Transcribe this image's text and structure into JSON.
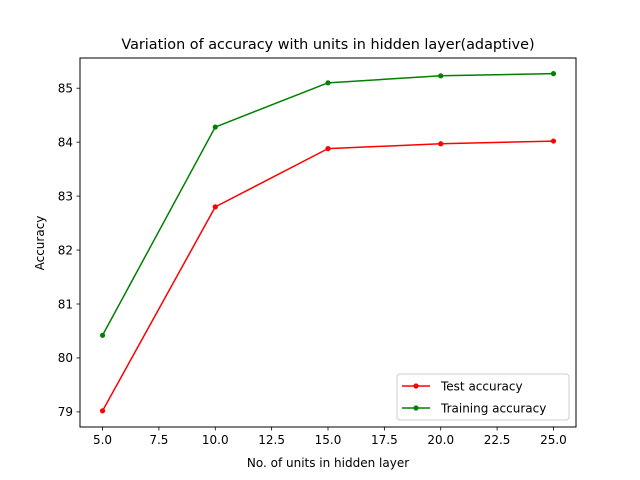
{
  "chart_data": {
    "type": "line",
    "title": "Variation of accuracy with units in hidden layer(adaptive)",
    "xlabel": "No. of units in hidden layer",
    "ylabel": "Accuracy",
    "x": [
      5,
      10,
      15,
      20,
      25
    ],
    "xlim": [
      4,
      26
    ],
    "ylim": [
      78.72,
      85.56
    ],
    "xticks": [
      "5.0",
      "7.5",
      "10.0",
      "12.5",
      "15.0",
      "17.5",
      "20.0",
      "22.5",
      "25.0"
    ],
    "yticks": [
      "79",
      "80",
      "81",
      "82",
      "83",
      "84",
      "85"
    ],
    "grid": false,
    "legend_position": "lower-right",
    "series": [
      {
        "name": "Test accuracy",
        "color": "#ff0000",
        "values": [
          79.02,
          82.8,
          83.88,
          83.97,
          84.02
        ]
      },
      {
        "name": "Training accuracy",
        "color": "#008000",
        "values": [
          80.42,
          84.28,
          85.1,
          85.23,
          85.27
        ]
      }
    ]
  }
}
